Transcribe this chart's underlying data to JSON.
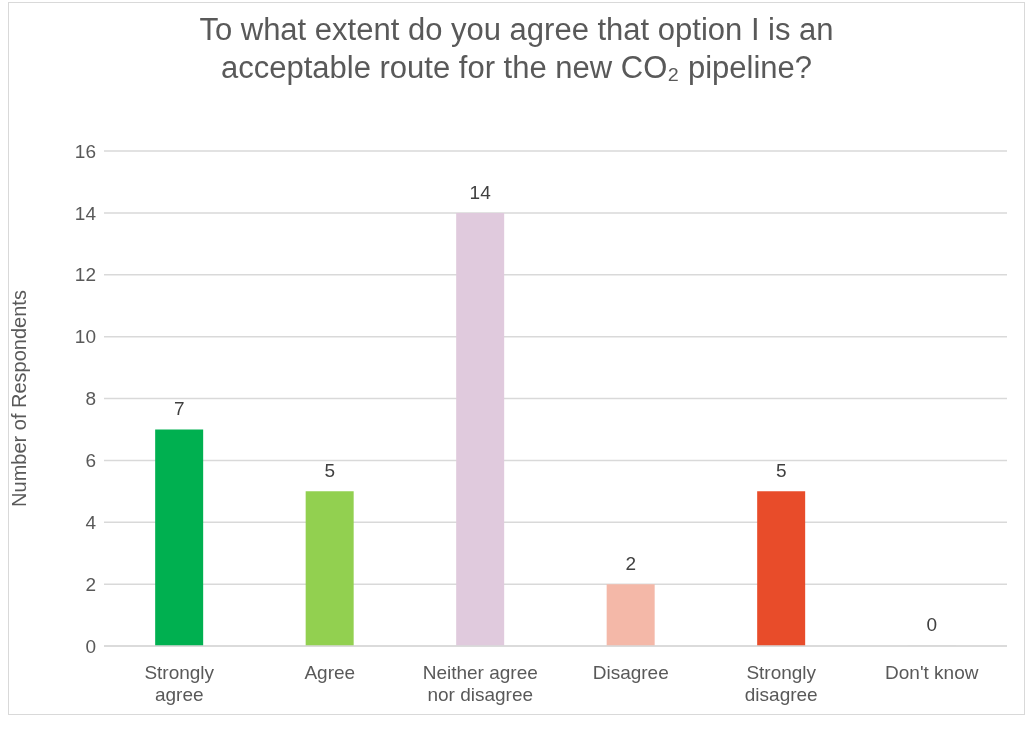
{
  "chart_data": {
    "type": "bar",
    "title": "To what extent do you agree that option I is an acceptable route for the new CO₂ pipeline?",
    "ylabel": "Number of Respondents",
    "categories": [
      "Strongly agree",
      "Agree",
      "Neither agree nor disagree",
      "Disagree",
      "Strongly disagree",
      "Don't know"
    ],
    "values": [
      7,
      5,
      14,
      2,
      5,
      0
    ],
    "colors": [
      "#00b050",
      "#92d050",
      "#e0cadd",
      "#f4b8a8",
      "#e84c2a",
      "#d9d9d9"
    ],
    "ylim": [
      0,
      16
    ],
    "yticks": [
      0,
      2,
      4,
      6,
      8,
      10,
      12,
      14,
      16
    ],
    "grid": "y",
    "data_labels": true
  }
}
